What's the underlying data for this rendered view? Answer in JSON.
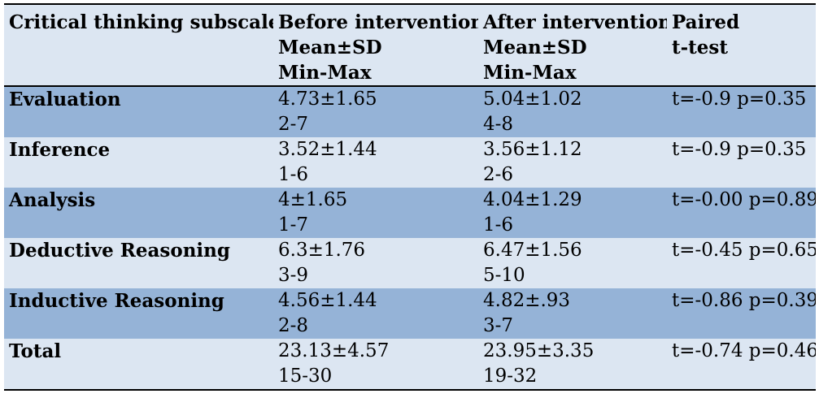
{
  "table": {
    "headers": [
      [
        "Critical thinking subscales"
      ],
      [
        "Before intervention",
        "Mean±SD",
        "Min-Max"
      ],
      [
        "After intervention",
        "Mean±SD",
        "Min-Max"
      ],
      [
        "Paired",
        "t-test"
      ]
    ],
    "rows": [
      {
        "label": "Evaluation",
        "before": [
          "4.73±1.65",
          "2-7"
        ],
        "after": [
          "5.04±1.02",
          "4-8"
        ],
        "ttest": "t=-0.9  p=0.35"
      },
      {
        "label": "Inference",
        "before": [
          "3.52±1.44",
          "1-6"
        ],
        "after": [
          "3.56±1.12",
          "2-6"
        ],
        "ttest": "t=-0.9  p=0.35"
      },
      {
        "label": "Analysis",
        "before": [
          "4±1.65",
          "1-7"
        ],
        "after": [
          "4.04±1.29",
          "1-6"
        ],
        "ttest": "t=-0.00 p=0.89"
      },
      {
        "label": "Deductive Reasoning",
        "before": [
          "6.3±1.76",
          "3-9"
        ],
        "after": [
          "6.47±1.56",
          "5-10"
        ],
        "ttest": "t=-0.45  p=0.65"
      },
      {
        "label": "Inductive Reasoning",
        "before": [
          "4.56±1.44",
          "2-8"
        ],
        "after": [
          "4.82±.93",
          "3-7"
        ],
        "ttest": "t=-0.86  p=0.39"
      },
      {
        "label": "Total",
        "before": [
          "23.13±4.57",
          "15-30"
        ],
        "after": [
          "23.95±3.35",
          "19-32"
        ],
        "ttest": "t=-0.74  p=0.46"
      }
    ],
    "colors": {
      "header_bg": "#dce6f2",
      "row_dark": "#95b3d7",
      "row_light": "#dce6f2"
    }
  }
}
